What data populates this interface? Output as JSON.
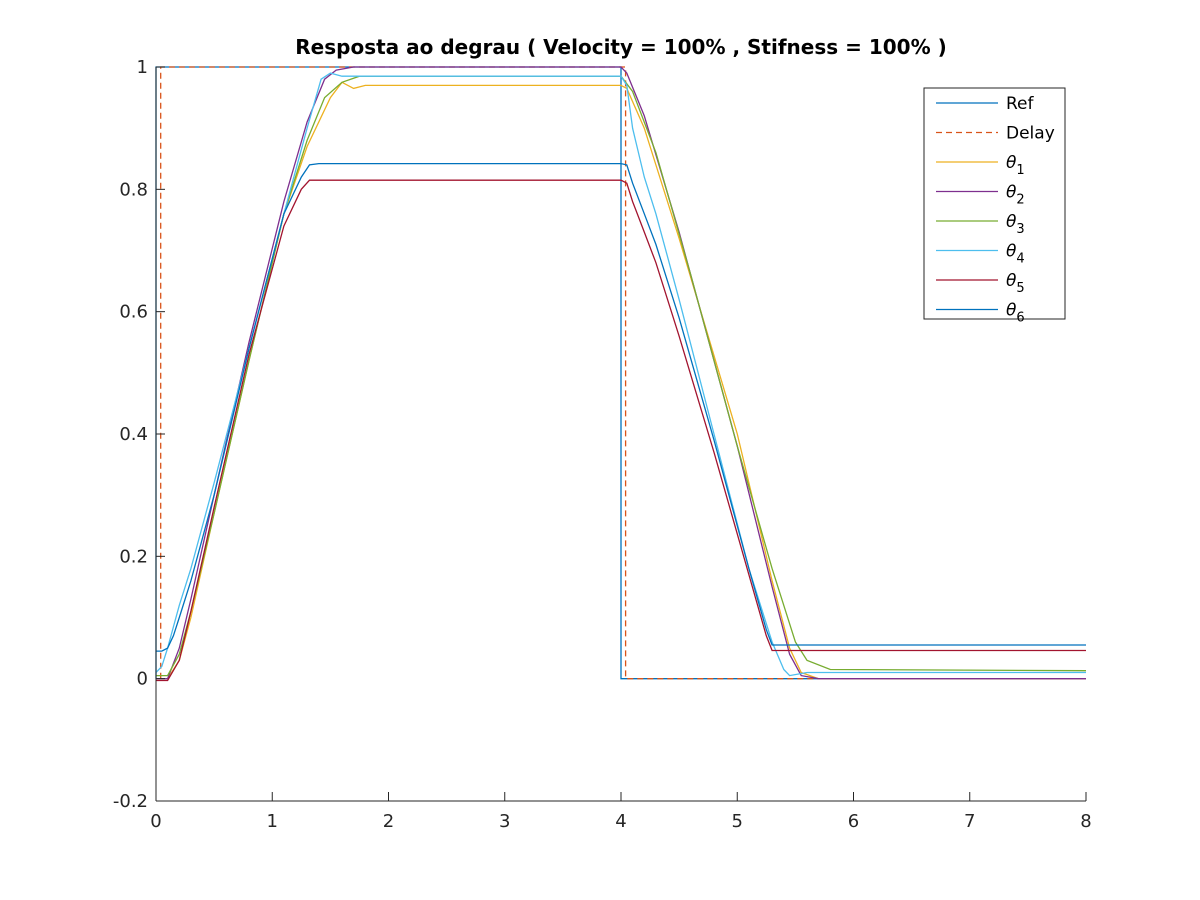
{
  "chart_data": {
    "type": "line",
    "title": "Resposta ao degrau ( Velocity = 100% , Stifness = 100% )",
    "xlabel": "",
    "ylabel": "",
    "xlim": [
      0,
      8
    ],
    "ylim": [
      -0.2,
      1
    ],
    "xticks": [
      0,
      1,
      2,
      3,
      4,
      5,
      6,
      7,
      8
    ],
    "yticks": [
      -0.2,
      0,
      0.2,
      0.4,
      0.6,
      0.8,
      1
    ],
    "xtick_labels": [
      "0",
      "1",
      "2",
      "3",
      "4",
      "5",
      "6",
      "7",
      "8"
    ],
    "ytick_labels": [
      "-0.2",
      "0",
      "0.2",
      "0.4",
      "0.6",
      "0.8",
      "1"
    ],
    "grid": false,
    "legend_position": "top-right",
    "series": [
      {
        "name": "Ref",
        "color": "#0072BD",
        "dash": "solid",
        "x": [
          0,
          0,
          4.0,
          4.0,
          8
        ],
        "y": [
          0,
          1,
          1,
          0,
          0
        ]
      },
      {
        "name": "Delay",
        "color": "#D95319",
        "dash": "dashed",
        "x": [
          0.04,
          0.04,
          4.04,
          4.04,
          8
        ],
        "y": [
          0,
          1,
          1,
          0,
          0
        ]
      },
      {
        "name": "θ1",
        "color": "#EDB120",
        "dash": "solid",
        "x": [
          0,
          0.1,
          0.2,
          0.3,
          0.5,
          0.8,
          1.1,
          1.3,
          1.5,
          1.6,
          1.7,
          1.8,
          2.0,
          3.0,
          4.0,
          4.05,
          4.2,
          4.5,
          5.0,
          5.3,
          5.45,
          5.55,
          5.7,
          8
        ],
        "y": [
          0.0,
          0.0,
          0.03,
          0.1,
          0.27,
          0.52,
          0.76,
          0.87,
          0.95,
          0.975,
          0.965,
          0.97,
          0.97,
          0.97,
          0.97,
          0.965,
          0.9,
          0.72,
          0.4,
          0.16,
          0.05,
          0.01,
          0.0,
          0.0
        ]
      },
      {
        "name": "θ2",
        "color": "#7E2F8E",
        "dash": "solid",
        "x": [
          0,
          0.1,
          0.2,
          0.3,
          0.5,
          0.8,
          1.1,
          1.3,
          1.45,
          1.55,
          1.7,
          2.0,
          3.0,
          4.0,
          4.05,
          4.2,
          4.5,
          5.0,
          5.3,
          5.45,
          5.55,
          5.7,
          8
        ],
        "y": [
          0.0,
          0.0,
          0.05,
          0.13,
          0.3,
          0.55,
          0.78,
          0.91,
          0.98,
          0.995,
          1.0,
          1.0,
          1.0,
          1.0,
          0.99,
          0.92,
          0.73,
          0.38,
          0.15,
          0.04,
          0.005,
          0.0,
          0.0
        ]
      },
      {
        "name": "θ3",
        "color": "#77AC30",
        "dash": "solid",
        "x": [
          0,
          0.1,
          0.2,
          0.3,
          0.5,
          0.8,
          1.1,
          1.3,
          1.45,
          1.6,
          1.75,
          2.0,
          3.0,
          4.0,
          4.1,
          4.3,
          4.6,
          5.0,
          5.3,
          5.5,
          5.6,
          5.8,
          8
        ],
        "y": [
          0.005,
          0.005,
          0.04,
          0.11,
          0.27,
          0.52,
          0.76,
          0.88,
          0.95,
          0.975,
          0.985,
          0.985,
          0.985,
          0.985,
          0.96,
          0.86,
          0.66,
          0.38,
          0.18,
          0.06,
          0.03,
          0.015,
          0.013
        ]
      },
      {
        "name": "θ4",
        "color": "#4DBEEE",
        "dash": "solid",
        "x": [
          0,
          0.05,
          0.1,
          0.2,
          0.3,
          0.5,
          0.8,
          1.1,
          1.3,
          1.42,
          1.5,
          1.6,
          2.0,
          3.0,
          4.0,
          4.05,
          4.1,
          4.2,
          4.3,
          4.5,
          4.8,
          5.1,
          5.3,
          5.4,
          5.45,
          5.6,
          8
        ],
        "y": [
          0.01,
          0.02,
          0.05,
          0.12,
          0.18,
          0.32,
          0.54,
          0.76,
          0.9,
          0.98,
          0.99,
          0.985,
          0.985,
          0.985,
          0.985,
          0.97,
          0.9,
          0.82,
          0.76,
          0.62,
          0.4,
          0.18,
          0.06,
          0.015,
          0.005,
          0.01,
          0.01
        ]
      },
      {
        "name": "θ5",
        "color": "#A2142F",
        "dash": "solid",
        "x": [
          0,
          0.1,
          0.2,
          0.3,
          0.5,
          0.8,
          1.1,
          1.25,
          1.32,
          1.4,
          2.0,
          3.0,
          4.0,
          4.05,
          4.1,
          4.2,
          4.3,
          4.5,
          4.8,
          5.1,
          5.25,
          5.3,
          5.4,
          8
        ],
        "y": [
          -0.003,
          -0.003,
          0.03,
          0.11,
          0.28,
          0.53,
          0.74,
          0.8,
          0.815,
          0.815,
          0.815,
          0.815,
          0.815,
          0.81,
          0.78,
          0.73,
          0.68,
          0.56,
          0.37,
          0.17,
          0.07,
          0.046,
          0.046,
          0.046
        ]
      },
      {
        "name": "θ6",
        "color": "#0072BD",
        "dash": "solid",
        "x": [
          0,
          0.05,
          0.1,
          0.15,
          0.2,
          0.3,
          0.5,
          0.8,
          1.1,
          1.25,
          1.32,
          1.4,
          2.0,
          3.0,
          4.0,
          4.05,
          4.1,
          4.2,
          4.3,
          4.5,
          4.8,
          5.1,
          5.25,
          5.3,
          5.4,
          8
        ],
        "y": [
          0.045,
          0.045,
          0.05,
          0.07,
          0.1,
          0.16,
          0.3,
          0.54,
          0.76,
          0.82,
          0.84,
          0.842,
          0.842,
          0.842,
          0.842,
          0.84,
          0.81,
          0.76,
          0.71,
          0.59,
          0.39,
          0.18,
          0.08,
          0.055,
          0.055,
          0.055
        ]
      }
    ]
  }
}
